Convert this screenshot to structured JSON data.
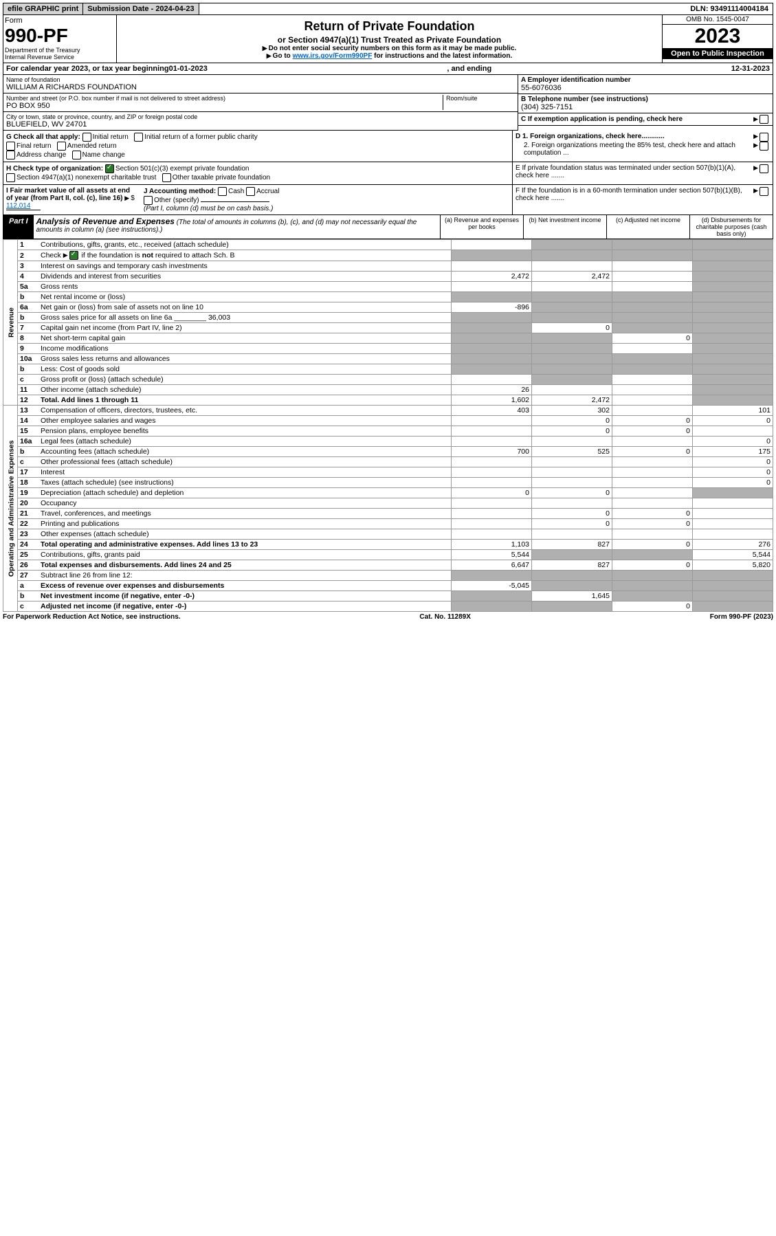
{
  "topbar": {
    "efile": "efile GRAPHIC print",
    "submission": "Submission Date - 2024-04-23",
    "dln": "DLN: 93491114004184"
  },
  "header": {
    "form_word": "Form",
    "form_number": "990-PF",
    "dept": "Department of the Treasury",
    "irs": "Internal Revenue Service",
    "title": "Return of Private Foundation",
    "subtitle": "or Section 4947(a)(1) Trust Treated as Private Foundation",
    "instr1": "Do not enter social security numbers on this form as it may be made public.",
    "instr2_prefix": "Go to ",
    "instr2_link": "www.irs.gov/Form990PF",
    "instr2_suffix": " for instructions and the latest information.",
    "omb": "OMB No. 1545-0047",
    "year": "2023",
    "open": "Open to Public Inspection"
  },
  "calyear": {
    "prefix": "For calendar year 2023, or tax year beginning ",
    "begin": "01-01-2023",
    "mid": " , and ending ",
    "end": "12-31-2023"
  },
  "info": {
    "name_label": "Name of foundation",
    "name": "WILLIAM A RICHARDS FOUNDATION",
    "addr_label": "Number and street (or P.O. box number if mail is not delivered to street address)",
    "addr": "PO BOX 950",
    "room_label": "Room/suite",
    "city_label": "City or town, state or province, country, and ZIP or foreign postal code",
    "city": "BLUEFIELD, WV  24701",
    "ein_label": "A Employer identification number",
    "ein": "55-6076036",
    "phone_label": "B Telephone number (see instructions)",
    "phone": "(304) 325-7151",
    "c_label": "C If exemption application is pending, check here",
    "d1": "D 1. Foreign organizations, check here............",
    "d2": "2. Foreign organizations meeting the 85% test, check here and attach computation ...",
    "e_label": "E  If private foundation status was terminated under section 507(b)(1)(A), check here .......",
    "f_label": "F  If the foundation is in a 60-month termination under section 507(b)(1)(B), check here .......",
    "g_label": "G Check all that apply:",
    "g_opts": [
      "Initial return",
      "Initial return of a former public charity",
      "Final return",
      "Amended return",
      "Address change",
      "Name change"
    ],
    "h_label": "H Check type of organization:",
    "h1": "Section 501(c)(3) exempt private foundation",
    "h2": "Section 4947(a)(1) nonexempt charitable trust",
    "h3": "Other taxable private foundation",
    "i_label": "I Fair market value of all assets at end of year (from Part II, col. (c), line 16)",
    "i_val": "112,014",
    "j_label": "J Accounting method:",
    "j_cash": "Cash",
    "j_accrual": "Accrual",
    "j_other": "Other (specify)",
    "j_note": "(Part I, column (d) must be on cash basis.)"
  },
  "part1": {
    "label": "Part I",
    "title": "Analysis of Revenue and Expenses",
    "note": "(The total of amounts in columns (b), (c), and (d) may not necessarily equal the amounts in column (a) (see instructions).)",
    "col_a": "(a) Revenue and expenses per books",
    "col_b": "(b) Net investment income",
    "col_c": "(c) Adjusted net income",
    "col_d": "(d) Disbursements for charitable purposes (cash basis only)"
  },
  "sides": {
    "revenue": "Revenue",
    "expenses": "Operating and Administrative Expenses"
  },
  "rows": [
    {
      "n": "1",
      "d": "Contributions, gifts, grants, etc., received (attach schedule)",
      "a": "",
      "b": "",
      "c": "",
      "dd": "",
      "sb": true,
      "sc": true,
      "sd": true
    },
    {
      "n": "2",
      "d": "Check ▶ ☑ if the foundation is not required to attach Sch. B",
      "a": "",
      "b": "",
      "c": "",
      "dd": "",
      "sb": true,
      "sc": true,
      "sd": true,
      "sa": true,
      "checkmark": true
    },
    {
      "n": "3",
      "d": "Interest on savings and temporary cash investments",
      "a": "",
      "b": "",
      "c": "",
      "dd": "",
      "sd": true
    },
    {
      "n": "4",
      "d": "Dividends and interest from securities",
      "a": "2,472",
      "b": "2,472",
      "c": "",
      "dd": "",
      "sd": true
    },
    {
      "n": "5a",
      "d": "Gross rents",
      "a": "",
      "b": "",
      "c": "",
      "dd": "",
      "sd": true
    },
    {
      "n": "b",
      "d": "Net rental income or (loss)",
      "a": "",
      "b": "",
      "c": "",
      "dd": "",
      "sa": true,
      "sb": true,
      "sc": true,
      "sd": true,
      "underline": true
    },
    {
      "n": "6a",
      "d": "Net gain or (loss) from sale of assets not on line 10",
      "a": "-896",
      "b": "",
      "c": "",
      "dd": "",
      "sb": true,
      "sc": true,
      "sd": true
    },
    {
      "n": "b",
      "d": "Gross sales price for all assets on line 6a ________ 36,003",
      "a": "",
      "b": "",
      "c": "",
      "dd": "",
      "sa": true,
      "sb": true,
      "sc": true,
      "sd": true
    },
    {
      "n": "7",
      "d": "Capital gain net income (from Part IV, line 2)",
      "a": "",
      "b": "0",
      "c": "",
      "dd": "",
      "sa": true,
      "sc": true,
      "sd": true
    },
    {
      "n": "8",
      "d": "Net short-term capital gain",
      "a": "",
      "b": "",
      "c": "0",
      "dd": "",
      "sa": true,
      "sb": true,
      "sd": true
    },
    {
      "n": "9",
      "d": "Income modifications",
      "a": "",
      "b": "",
      "c": "",
      "dd": "",
      "sa": true,
      "sb": true,
      "sd": true
    },
    {
      "n": "10a",
      "d": "Gross sales less returns and allowances",
      "a": "",
      "b": "",
      "c": "",
      "dd": "",
      "sa": true,
      "sb": true,
      "sc": true,
      "sd": true,
      "underline": true
    },
    {
      "n": "b",
      "d": "Less: Cost of goods sold",
      "a": "",
      "b": "",
      "c": "",
      "dd": "",
      "sa": true,
      "sb": true,
      "sc": true,
      "sd": true,
      "underline": true
    },
    {
      "n": "c",
      "d": "Gross profit or (loss) (attach schedule)",
      "a": "",
      "b": "",
      "c": "",
      "dd": "",
      "sb": true,
      "sd": true
    },
    {
      "n": "11",
      "d": "Other income (attach schedule)",
      "a": "26",
      "b": "",
      "c": "",
      "dd": "",
      "sd": true
    },
    {
      "n": "12",
      "d": "Total. Add lines 1 through 11",
      "a": "1,602",
      "b": "2,472",
      "c": "",
      "dd": "",
      "sd": true,
      "bold": true
    },
    {
      "n": "13",
      "d": "Compensation of officers, directors, trustees, etc.",
      "a": "403",
      "b": "302",
      "c": "",
      "dd": "101"
    },
    {
      "n": "14",
      "d": "Other employee salaries and wages",
      "a": "",
      "b": "0",
      "c": "0",
      "dd": "0"
    },
    {
      "n": "15",
      "d": "Pension plans, employee benefits",
      "a": "",
      "b": "0",
      "c": "0",
      "dd": ""
    },
    {
      "n": "16a",
      "d": "Legal fees (attach schedule)",
      "a": "",
      "b": "",
      "c": "",
      "dd": "0"
    },
    {
      "n": "b",
      "d": "Accounting fees (attach schedule)",
      "a": "700",
      "b": "525",
      "c": "0",
      "dd": "175"
    },
    {
      "n": "c",
      "d": "Other professional fees (attach schedule)",
      "a": "",
      "b": "",
      "c": "",
      "dd": "0"
    },
    {
      "n": "17",
      "d": "Interest",
      "a": "",
      "b": "",
      "c": "",
      "dd": "0"
    },
    {
      "n": "18",
      "d": "Taxes (attach schedule) (see instructions)",
      "a": "",
      "b": "",
      "c": "",
      "dd": "0"
    },
    {
      "n": "19",
      "d": "Depreciation (attach schedule) and depletion",
      "a": "0",
      "b": "0",
      "c": "",
      "dd": "",
      "sd": true
    },
    {
      "n": "20",
      "d": "Occupancy",
      "a": "",
      "b": "",
      "c": "",
      "dd": ""
    },
    {
      "n": "21",
      "d": "Travel, conferences, and meetings",
      "a": "",
      "b": "0",
      "c": "0",
      "dd": ""
    },
    {
      "n": "22",
      "d": "Printing and publications",
      "a": "",
      "b": "0",
      "c": "0",
      "dd": ""
    },
    {
      "n": "23",
      "d": "Other expenses (attach schedule)",
      "a": "",
      "b": "",
      "c": "",
      "dd": ""
    },
    {
      "n": "24",
      "d": "Total operating and administrative expenses. Add lines 13 to 23",
      "a": "1,103",
      "b": "827",
      "c": "0",
      "dd": "276",
      "bold": true
    },
    {
      "n": "25",
      "d": "Contributions, gifts, grants paid",
      "a": "5,544",
      "b": "",
      "c": "",
      "dd": "5,544",
      "sb": true,
      "sc": true
    },
    {
      "n": "26",
      "d": "Total expenses and disbursements. Add lines 24 and 25",
      "a": "6,647",
      "b": "827",
      "c": "0",
      "dd": "5,820",
      "bold": true
    },
    {
      "n": "27",
      "d": "Subtract line 26 from line 12:",
      "a": "",
      "b": "",
      "c": "",
      "dd": "",
      "sa": true,
      "sb": true,
      "sc": true,
      "sd": true
    },
    {
      "n": "a",
      "d": "Excess of revenue over expenses and disbursements",
      "a": "-5,045",
      "b": "",
      "c": "",
      "dd": "",
      "sb": true,
      "sc": true,
      "sd": true,
      "bold": true
    },
    {
      "n": "b",
      "d": "Net investment income (if negative, enter -0-)",
      "a": "",
      "b": "1,645",
      "c": "",
      "dd": "",
      "sa": true,
      "sc": true,
      "sd": true,
      "bold": true
    },
    {
      "n": "c",
      "d": "Adjusted net income (if negative, enter -0-)",
      "a": "",
      "b": "",
      "c": "0",
      "dd": "",
      "sa": true,
      "sb": true,
      "sd": true,
      "bold": true
    }
  ],
  "footer": {
    "left": "For Paperwork Reduction Act Notice, see instructions.",
    "mid": "Cat. No. 11289X",
    "right": "Form 990-PF (2023)"
  }
}
